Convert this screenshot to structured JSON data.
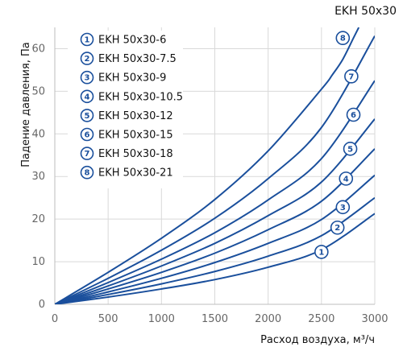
{
  "chart_data": {
    "type": "line",
    "title": "EKH 50x30",
    "xlabel": "Расход воздуха, м³/ч",
    "ylabel": "Падение давления, Па",
    "xlim": [
      0,
      3000
    ],
    "ylim": [
      0,
      65
    ],
    "xticks": [
      "0",
      "500",
      "1000",
      "1500",
      "2000",
      "2500",
      "3000"
    ],
    "yticks": [
      "0",
      "10",
      "20",
      "30",
      "40",
      "50",
      "60"
    ],
    "grid": true,
    "legend_position": "top-left",
    "line_color": "#1a4f9c",
    "series": [
      {
        "name": "EKH 50x30-6",
        "marker": "1",
        "points": [
          [
            0,
            0
          ],
          [
            500,
            1.7
          ],
          [
            1000,
            3.6
          ],
          [
            1500,
            5.8
          ],
          [
            2000,
            8.7
          ],
          [
            2500,
            12.8
          ],
          [
            3000,
            21.3
          ]
        ],
        "marker_at": [
          2500,
          12.3
        ]
      },
      {
        "name": "EKH 50x30-7.5",
        "marker": "2",
        "points": [
          [
            0,
            0
          ],
          [
            500,
            2.3
          ],
          [
            1000,
            4.8
          ],
          [
            1500,
            7.7
          ],
          [
            2000,
            11.3
          ],
          [
            2500,
            16.1
          ],
          [
            3000,
            25.0
          ]
        ],
        "marker_at": [
          2650,
          18.0
        ]
      },
      {
        "name": "EKH 50x30-9",
        "marker": "3",
        "points": [
          [
            0,
            0
          ],
          [
            500,
            2.9
          ],
          [
            1000,
            6.1
          ],
          [
            1500,
            9.8
          ],
          [
            2000,
            14.3
          ],
          [
            2500,
            19.9
          ],
          [
            3000,
            30.3
          ]
        ],
        "marker_at": [
          2700,
          22.8
        ]
      },
      {
        "name": "EKH 50x30-10.5",
        "marker": "4",
        "points": [
          [
            0,
            0
          ],
          [
            500,
            3.6
          ],
          [
            1000,
            7.5
          ],
          [
            1500,
            12.0
          ],
          [
            2000,
            17.5
          ],
          [
            2500,
            24.2
          ],
          [
            3000,
            36.5
          ]
        ],
        "marker_at": [
          2730,
          29.5
        ]
      },
      {
        "name": "EKH 50x30-12",
        "marker": "5",
        "points": [
          [
            0,
            0
          ],
          [
            500,
            4.3
          ],
          [
            1000,
            9.0
          ],
          [
            1500,
            14.3
          ],
          [
            2000,
            20.8
          ],
          [
            2500,
            28.7
          ],
          [
            3000,
            43.5
          ]
        ],
        "marker_at": [
          2770,
          36.5
        ]
      },
      {
        "name": "EKH 50x30-15",
        "marker": "6",
        "points": [
          [
            0,
            0
          ],
          [
            500,
            5.1
          ],
          [
            1000,
            10.6
          ],
          [
            1500,
            16.8
          ],
          [
            2000,
            24.5
          ],
          [
            2500,
            34.2
          ],
          [
            3000,
            52.5
          ]
        ],
        "marker_at": [
          2800,
          44.5
        ]
      },
      {
        "name": "EKH 50x30-18",
        "marker": "7",
        "points": [
          [
            0,
            0
          ],
          [
            500,
            6.1
          ],
          [
            1000,
            12.7
          ],
          [
            1500,
            20.2
          ],
          [
            2000,
            29.5
          ],
          [
            2500,
            41.5
          ],
          [
            3000,
            63.0
          ]
        ],
        "marker_at": [
          2780,
          53.5
        ]
      },
      {
        "name": "EKH 50x30-21",
        "marker": "8",
        "points": [
          [
            0,
            0
          ],
          [
            500,
            7.5
          ],
          [
            1000,
            15.5
          ],
          [
            1500,
            24.6
          ],
          [
            2000,
            36.0
          ],
          [
            2500,
            50.5
          ],
          [
            2600,
            53.8
          ],
          [
            2700,
            57.5
          ],
          [
            2800,
            62.5
          ],
          [
            2850,
            65.0
          ]
        ],
        "marker_at": [
          2700,
          62.5
        ]
      }
    ]
  }
}
